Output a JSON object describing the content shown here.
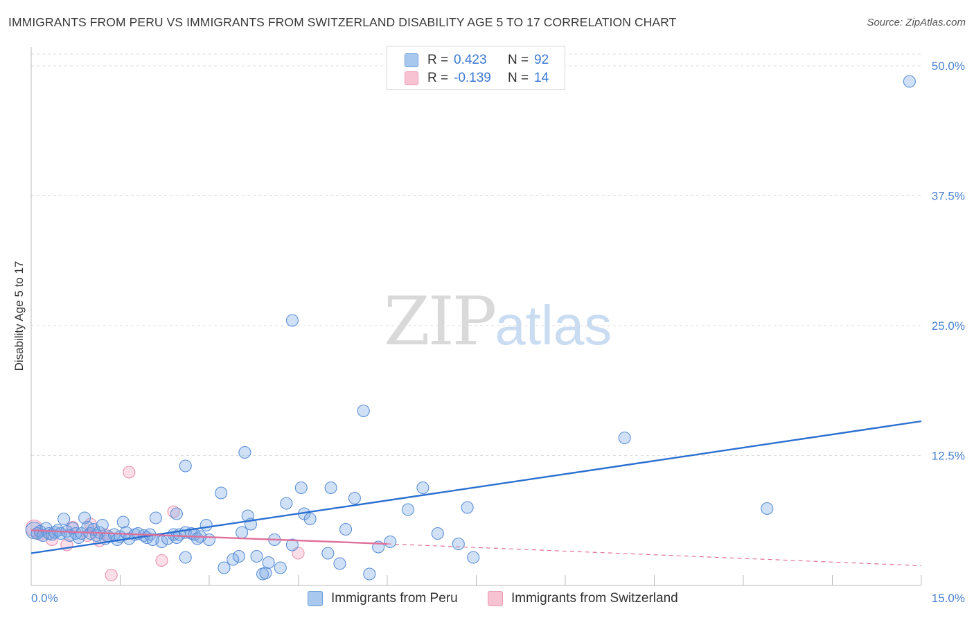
{
  "title": "IMMIGRANTS FROM PERU VS IMMIGRANTS FROM SWITZERLAND DISABILITY AGE 5 TO 17 CORRELATION CHART",
  "source": "Source: ZipAtlas.com",
  "watermark": {
    "zip": "ZIP",
    "atlas": "atlas"
  },
  "legend_top": [
    {
      "r_label": "R =",
      "r_value": "0.423",
      "n_label": "N =",
      "n_value": "92",
      "color": "#a8c8ee",
      "border": "#6b9edb"
    },
    {
      "r_label": "R =",
      "r_value": "-0.139",
      "n_label": "N =",
      "n_value": "14",
      "color": "#f7c3d2",
      "border": "#e89ab2"
    }
  ],
  "legend_bottom": [
    "Immigrants from Peru",
    "Immigrants from Switzerland"
  ],
  "colors": {
    "peru_fill": "rgba(120,166,228,0.35)",
    "peru_stroke": "#5b8fd6",
    "peru_line": "#2a6fd1",
    "swiss_fill": "rgba(244,160,190,0.35)",
    "swiss_stroke": "#e891ae",
    "swiss_line": "#e0709a",
    "tick_text": "#4a82d0",
    "grid": "#dddddd"
  },
  "chart_data": {
    "type": "scatter",
    "title": "IMMIGRANTS FROM PERU VS IMMIGRANTS FROM SWITZERLAND DISABILITY AGE 5 TO 17 CORRELATION CHART",
    "xlabel": "",
    "ylabel": "Disability Age 5 to 17",
    "xlim": [
      0,
      15
    ],
    "ylim": [
      0,
      50
    ],
    "x_tick_labels": [
      {
        "value": 0,
        "label": "0.0%"
      },
      {
        "value": 15,
        "label": "15.0%"
      }
    ],
    "y_ticks": [
      {
        "value": 12.5,
        "label": "12.5%"
      },
      {
        "value": 25,
        "label": "25.0%"
      },
      {
        "value": 37.5,
        "label": "37.5%"
      },
      {
        "value": 50,
        "label": "50.0%"
      }
    ],
    "x_grid": [
      1.5,
      3.0,
      4.5,
      6.0,
      7.5,
      9.0,
      10.5,
      12.0,
      13.5,
      15.0
    ],
    "series": [
      {
        "name": "Immigrants from Peru",
        "points": [
          [
            0.05,
            5.3
          ],
          [
            0.1,
            5.0
          ],
          [
            0.15,
            5.2
          ],
          [
            0.2,
            4.8
          ],
          [
            0.25,
            5.5
          ],
          [
            0.3,
            5.0
          ],
          [
            0.35,
            4.9
          ],
          [
            0.4,
            5.1
          ],
          [
            0.45,
            5.3
          ],
          [
            0.5,
            5.0
          ],
          [
            0.55,
            6.4
          ],
          [
            0.6,
            5.2
          ],
          [
            0.65,
            4.8
          ],
          [
            0.7,
            5.5
          ],
          [
            0.75,
            5.0
          ],
          [
            0.8,
            4.6
          ],
          [
            0.85,
            5.0
          ],
          [
            0.9,
            6.5
          ],
          [
            0.95,
            5.6
          ],
          [
            1.0,
            5.0
          ],
          [
            1.05,
            5.4
          ],
          [
            1.1,
            4.8
          ],
          [
            1.15,
            5.1
          ],
          [
            1.2,
            5.8
          ],
          [
            1.25,
            4.5
          ],
          [
            1.3,
            4.7
          ],
          [
            1.4,
            4.9
          ],
          [
            1.45,
            4.4
          ],
          [
            1.5,
            4.7
          ],
          [
            1.55,
            6.1
          ],
          [
            1.6,
            5.1
          ],
          [
            1.65,
            4.5
          ],
          [
            1.75,
            4.9
          ],
          [
            1.8,
            5.0
          ],
          [
            1.9,
            4.8
          ],
          [
            1.95,
            4.6
          ],
          [
            2.0,
            4.9
          ],
          [
            2.05,
            4.4
          ],
          [
            2.1,
            6.5
          ],
          [
            2.2,
            4.2
          ],
          [
            2.3,
            4.5
          ],
          [
            2.4,
            4.9
          ],
          [
            2.45,
            4.6
          ],
          [
            2.5,
            4.9
          ],
          [
            2.6,
            5.1
          ],
          [
            2.7,
            5.0
          ],
          [
            2.75,
            4.9
          ],
          [
            2.8,
            4.5
          ],
          [
            2.85,
            4.7
          ],
          [
            2.95,
            5.8
          ],
          [
            3.0,
            4.4
          ],
          [
            2.6,
            2.7
          ],
          [
            3.25,
            1.7
          ],
          [
            3.4,
            2.5
          ],
          [
            3.5,
            2.8
          ],
          [
            3.55,
            5.1
          ],
          [
            3.65,
            6.7
          ],
          [
            3.7,
            5.9
          ],
          [
            3.8,
            2.8
          ],
          [
            3.9,
            1.1
          ],
          [
            3.95,
            1.2
          ],
          [
            4.0,
            2.2
          ],
          [
            4.1,
            4.4
          ],
          [
            4.2,
            1.7
          ],
          [
            4.3,
            7.9
          ],
          [
            4.4,
            3.9
          ],
          [
            4.55,
            9.4
          ],
          [
            4.6,
            6.9
          ],
          [
            4.7,
            6.4
          ],
          [
            5.0,
            3.1
          ],
          [
            5.05,
            9.4
          ],
          [
            5.2,
            2.1
          ],
          [
            5.3,
            5.4
          ],
          [
            5.45,
            8.4
          ],
          [
            5.7,
            1.1
          ],
          [
            5.85,
            3.7
          ],
          [
            6.05,
            4.2
          ],
          [
            6.35,
            7.3
          ],
          [
            6.6,
            9.4
          ],
          [
            6.85,
            5.0
          ],
          [
            7.2,
            4.0
          ],
          [
            7.35,
            7.5
          ],
          [
            7.45,
            2.7
          ],
          [
            2.6,
            11.5
          ],
          [
            3.6,
            12.8
          ],
          [
            4.4,
            25.5
          ],
          [
            5.6,
            16.8
          ],
          [
            10.0,
            14.2
          ],
          [
            12.4,
            7.4
          ],
          [
            14.8,
            48.5
          ],
          [
            3.2,
            8.9
          ],
          [
            2.45,
            6.9
          ]
        ]
      },
      {
        "name": "Immigrants from Switzerland",
        "points": [
          [
            0.05,
            5.5
          ],
          [
            0.15,
            4.9
          ],
          [
            0.35,
            4.4
          ],
          [
            0.6,
            3.9
          ],
          [
            0.7,
            5.6
          ],
          [
            0.95,
            4.8
          ],
          [
            1.0,
            5.9
          ],
          [
            1.15,
            4.3
          ],
          [
            1.25,
            4.9
          ],
          [
            1.35,
            1.0
          ],
          [
            1.65,
            10.9
          ],
          [
            2.2,
            2.4
          ],
          [
            2.4,
            7.1
          ],
          [
            4.5,
            3.1
          ]
        ]
      }
    ],
    "trend_lines": [
      {
        "series": "Immigrants from Peru",
        "x": [
          0,
          15
        ],
        "y": [
          3.1,
          15.8
        ],
        "style": "solid"
      },
      {
        "series": "Immigrants from Switzerland",
        "x": [
          0,
          6.0
        ],
        "y": [
          5.3,
          4.0
        ],
        "style": "solid"
      },
      {
        "series": "Immigrants from Switzerland",
        "x": [
          6.0,
          15
        ],
        "y": [
          4.0,
          1.9
        ],
        "style": "dashed"
      }
    ]
  }
}
